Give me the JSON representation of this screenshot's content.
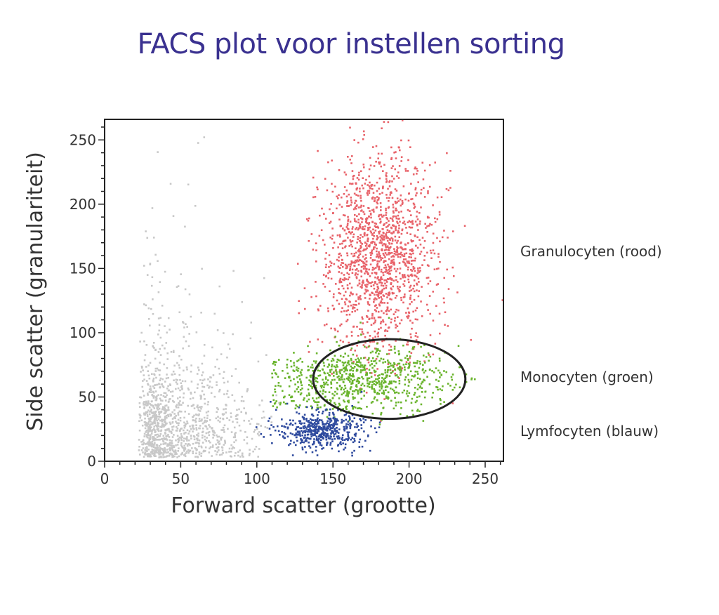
{
  "chart_data": {
    "type": "scatter",
    "title": "FACS plot voor instellen sorting",
    "xlabel": "Forward scatter (grootte)",
    "ylabel": "Side scatter (granulariteit)",
    "xlim": [
      0,
      262
    ],
    "ylim": [
      0,
      266
    ],
    "xticks": [
      0,
      50,
      100,
      150,
      200,
      250
    ],
    "yticks": [
      0,
      50,
      100,
      150,
      200,
      250
    ],
    "grid": false,
    "series": [
      {
        "name": "Granulocyten (rood)",
        "color": "#e8636a",
        "center": [
          180,
          160
        ],
        "spread": [
          19,
          38
        ],
        "count": 1500
      },
      {
        "name": "Monocyten (groen)",
        "color": "#6ab42d",
        "center": [
          178,
          65
        ],
        "spread": [
          24,
          13
        ],
        "count": 800
      },
      {
        "name": "Lymfocyten (blauw)",
        "color": "#2e4a9e",
        "center": [
          142,
          24
        ],
        "spread": [
          14,
          7
        ],
        "count": 500
      },
      {
        "color": "#c8c8c8",
        "center": [
          55,
          35
        ],
        "spread": [
          28,
          25
        ],
        "count": 1200
      }
    ],
    "gate": {
      "shape": "ellipse",
      "center": [
        187,
        64
      ],
      "radii": [
        50,
        31
      ],
      "color": "#222222"
    },
    "labels": [
      {
        "text": "Granulocyten (rood)",
        "y": 163
      },
      {
        "text": "Monocyten (groen)",
        "y": 65
      },
      {
        "text": "Lymfocyten (blauw)",
        "y": 23
      }
    ]
  }
}
